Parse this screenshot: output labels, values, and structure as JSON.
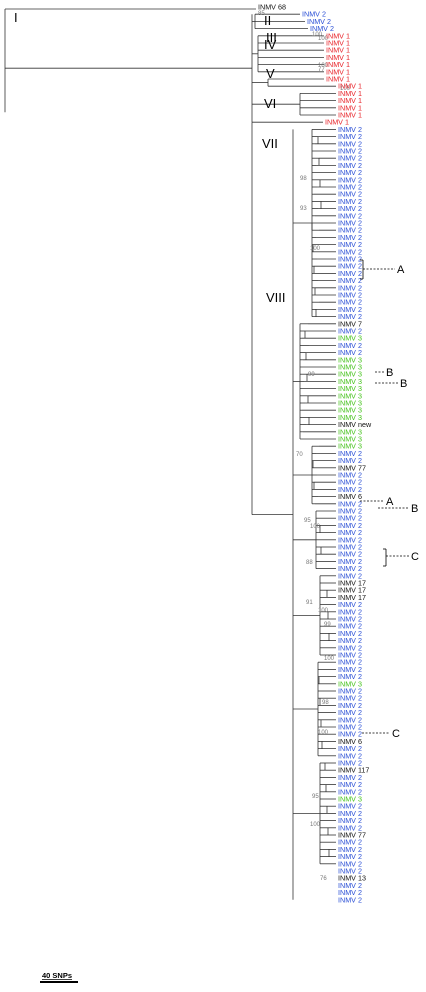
{
  "colors": {
    "INMV 2": "#2a4fd6",
    "INMV 1": "#e8242a",
    "INMV 3": "#44c21a",
    "other": "#111111"
  },
  "clade_labels": [
    "I",
    "II",
    "III",
    "IV",
    "V",
    "VI",
    "VII",
    "VIII"
  ],
  "callouts": [
    "A",
    "B",
    "B",
    "A",
    "B",
    "C",
    "C"
  ],
  "support_values": [
    "85",
    "100",
    "100",
    "100",
    "77",
    "100",
    "98",
    "93",
    "100",
    "99",
    "70",
    "95",
    "100",
    "88",
    "91",
    "100",
    "99",
    "100",
    "98",
    "100",
    "95",
    "100",
    "76"
  ],
  "scale_label": "40 SNPs",
  "leaves": [
    "INMV 68",
    "INMV 2",
    "INMV 2",
    "INMV 2",
    "INMV 1",
    "INMV 1",
    "INMV 1",
    "INMV 1",
    "INMV 1",
    "INMV 1",
    "INMV 1",
    "INMV 1",
    "INMV 1",
    "INMV 1",
    "INMV 1",
    "INMV 1",
    "INMV 1",
    "INMV 2",
    "INMV 2",
    "INMV 2",
    "INMV 2",
    "INMV 2",
    "INMV 2",
    "INMV 2",
    "INMV 2",
    "INMV 2",
    "INMV 2",
    "INMV 2",
    "INMV 2",
    "INMV 2",
    "INMV 2",
    "INMV 2",
    "INMV 2",
    "INMV 2",
    "INMV 2",
    "INMV 2",
    "INMV 2",
    "INMV 2",
    "INMV 2",
    "INMV 2",
    "INMV 2",
    "INMV 2",
    "INMV 2",
    "INMV 2",
    "INMV 7",
    "INMV 2",
    "INMV 3",
    "INMV 2",
    "INMV 2",
    "INMV 3",
    "INMV 3",
    "INMV 3",
    "INMV 3",
    "INMV 3",
    "INMV 3",
    "INMV 3",
    "INMV 3",
    "INMV 3",
    "INMV new",
    "INMV 3",
    "INMV 3",
    "INMV 3",
    "INMV 2",
    "INMV 2",
    "INMV 77",
    "INMV 2",
    "INMV 2",
    "INMV 2",
    "INMV 6",
    "INMV 2",
    "INMV 2",
    "INMV 2",
    "INMV 2",
    "INMV 2",
    "INMV 2",
    "INMV 2",
    "INMV 2",
    "INMV 2",
    "INMV 2",
    "INMV 2",
    "INMV 17",
    "INMV 17",
    "INMV 17",
    "INMV 2",
    "INMV 2",
    "INMV 2",
    "INMV 2",
    "INMV 2",
    "INMV 2",
    "INMV 2",
    "INMV 2",
    "INMV 2",
    "INMV 2",
    "INMV 2",
    "INMV 3",
    "INMV 2",
    "INMV 2",
    "INMV 2",
    "INMV 2",
    "INMV 2",
    "INMV 2",
    "INMV 2",
    "INMV 6",
    "INMV 2",
    "INMV 2",
    "INMV 2",
    "INMV 117",
    "INMV 2",
    "INMV 2",
    "INMV 2",
    "INMV 3",
    "INMV 2",
    "INMV 2",
    "INMV 2",
    "INMV 2",
    "INMV 77",
    "INMV 2",
    "INMV 2",
    "INMV 2",
    "INMV 2",
    "INMV 2",
    "INMV 13",
    "INMV 2",
    "INMV 2",
    "INMV 2"
  ]
}
